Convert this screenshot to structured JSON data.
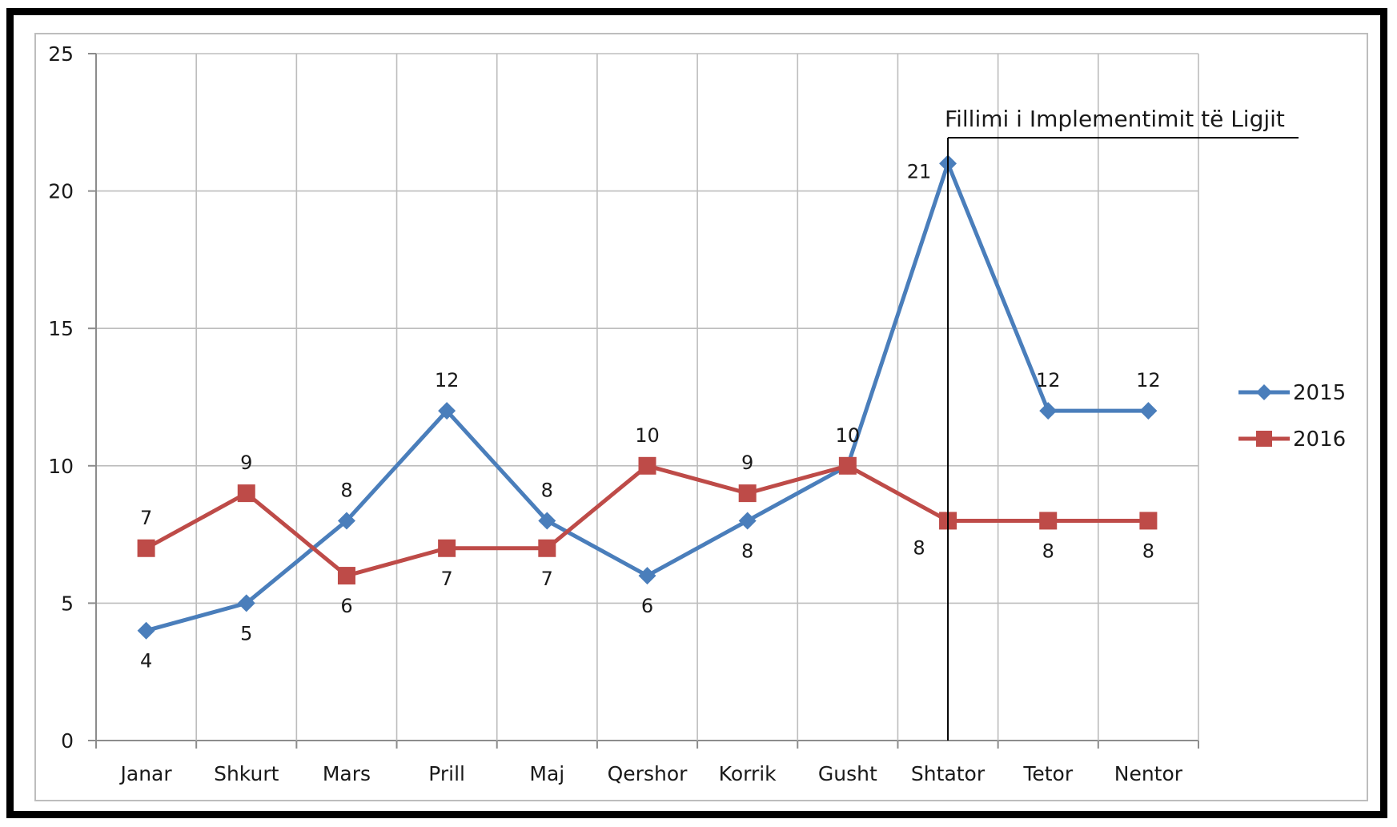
{
  "chart_data": {
    "type": "line",
    "categories": [
      "Janar",
      "Shkurt",
      "Mars",
      "Prill",
      "Maj",
      "Qershor",
      "Korrik",
      "Gusht",
      "Shtator",
      "Tetor",
      "Nentor"
    ],
    "series": [
      {
        "name": "2015",
        "color": "#4a7ebb",
        "marker": "diamond",
        "values": [
          4,
          5,
          8,
          12,
          8,
          6,
          8,
          10,
          21,
          12,
          12
        ]
      },
      {
        "name": "2016",
        "color": "#be4b48",
        "marker": "square",
        "values": [
          7,
          9,
          6,
          7,
          7,
          10,
          9,
          10,
          8,
          8,
          8
        ]
      }
    ],
    "ylim": [
      0,
      25
    ],
    "yticks": [
      0,
      5,
      10,
      15,
      20,
      25
    ],
    "grid": true,
    "legend": "right",
    "annotation": {
      "text": "Fillimi i Implementimit të Ligjit",
      "category": "Shtator"
    }
  }
}
